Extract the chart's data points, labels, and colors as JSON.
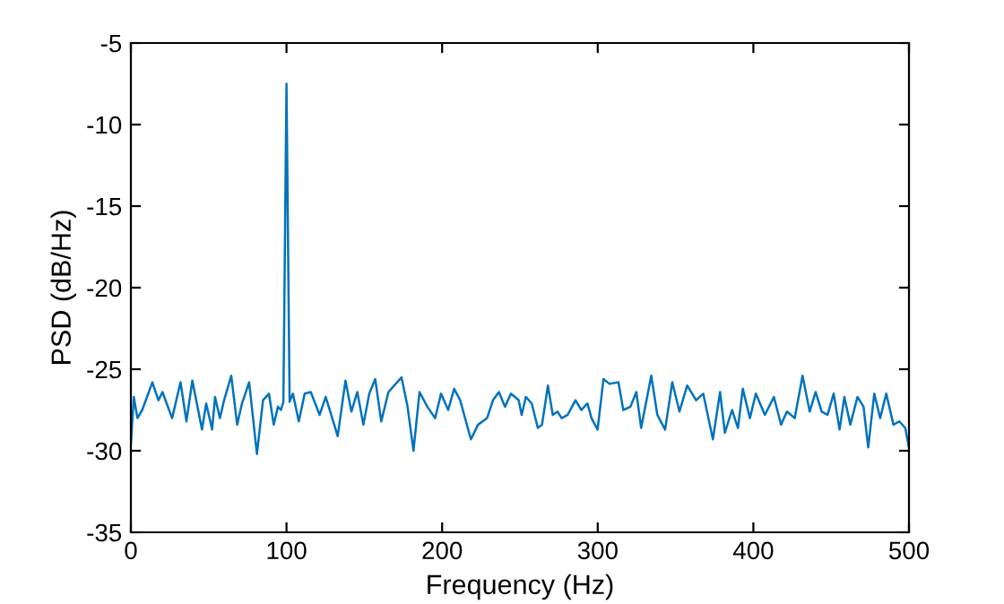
{
  "chart_data": {
    "type": "line",
    "xlabel": "Frequency (Hz)",
    "ylabel": "PSD (dB/Hz)",
    "xlim": [
      0,
      500
    ],
    "ylim": [
      -35,
      -5
    ],
    "xticks": [
      0,
      100,
      200,
      300,
      400,
      500
    ],
    "yticks": [
      -35,
      -30,
      -25,
      -20,
      -15,
      -10,
      -5
    ],
    "grid": false,
    "legend": false,
    "series": [
      {
        "color": "#0072bd",
        "x": [
          0,
          1.9,
          4.2,
          7.3,
          13.8,
          17.7,
          20.3,
          26.5,
          31.9,
          35.7,
          39.5,
          45.7,
          48.4,
          52.2,
          54.1,
          57.2,
          59.9,
          64.5,
          68.3,
          71.4,
          76,
          81,
          84.9,
          88.7,
          91.8,
          94.5,
          96.4,
          98,
          100,
          102,
          104.1,
          107.9,
          111.7,
          115.6,
          121.3,
          125.2,
          132.9,
          137.9,
          141.7,
          145.5,
          149.4,
          153.2,
          157.0,
          160.9,
          165.5,
          173.9,
          177.8,
          181.6,
          185.5,
          190.5,
          195.5,
          199.3,
          203.9,
          207.7,
          211.6,
          218.5,
          223.1,
          228.9,
          232.7,
          236.5,
          240.4,
          244.2,
          249.2,
          251.1,
          253.8,
          257.6,
          261.5,
          264.2,
          268,
          271.1,
          274.2,
          276.8,
          280.7,
          285.7,
          289.5,
          293.4,
          296.0,
          299.9,
          303.7,
          307.6,
          313.3,
          316.4,
          321.0,
          324.8,
          327.9,
          334.4,
          338.3,
          343.3,
          347.9,
          352.5,
          357.5,
          363.2,
          367.8,
          374.0,
          378.6,
          381.7,
          386.3,
          390.1,
          393.2,
          397.8,
          401.6,
          407.4,
          413.2,
          417.8,
          421.6,
          426.6,
          431.6,
          436.2,
          440.0,
          443.9,
          447.7,
          451.6,
          455.4,
          458.5,
          462.3,
          466.9,
          470.8,
          473.8,
          477.7,
          481.5,
          485.4,
          490.0,
          493.8,
          497.6,
          500
        ],
        "values": [
          -29.6,
          -26.7,
          -28.0,
          -27.5,
          -25.8,
          -26.9,
          -26.4,
          -28.0,
          -25.8,
          -28.2,
          -25.7,
          -28.7,
          -27.1,
          -28.7,
          -26.7,
          -28.0,
          -26.9,
          -25.4,
          -28.4,
          -27.1,
          -25.8,
          -30.2,
          -26.9,
          -26.5,
          -28.4,
          -27.3,
          -27.5,
          -27.0,
          -7.5,
          -27.0,
          -26.5,
          -28.2,
          -26.5,
          -26.4,
          -27.8,
          -26.7,
          -29.1,
          -25.7,
          -27.6,
          -26.4,
          -28.4,
          -26.5,
          -25.6,
          -28.2,
          -26.4,
          -25.5,
          -27.3,
          -30.0,
          -26.4,
          -27.3,
          -28.0,
          -26.5,
          -27.5,
          -26.2,
          -26.9,
          -29.3,
          -28.4,
          -28.0,
          -26.9,
          -26.4,
          -27.3,
          -26.5,
          -26.9,
          -27.8,
          -26.7,
          -27.1,
          -28.6,
          -28.4,
          -26.0,
          -27.8,
          -27.6,
          -28.0,
          -27.8,
          -26.9,
          -27.5,
          -27.1,
          -28.0,
          -28.7,
          -25.6,
          -25.9,
          -25.8,
          -27.5,
          -27.3,
          -26.4,
          -28.6,
          -25.4,
          -27.8,
          -28.7,
          -25.8,
          -27.6,
          -26.0,
          -26.9,
          -26.5,
          -29.3,
          -26.4,
          -28.9,
          -27.5,
          -28.6,
          -26.2,
          -28.0,
          -26.5,
          -27.8,
          -26.7,
          -28.4,
          -27.6,
          -28.0,
          -25.4,
          -27.6,
          -26.4,
          -27.6,
          -27.8,
          -26.5,
          -28.7,
          -26.7,
          -28.4,
          -26.7,
          -27.3,
          -29.8,
          -26.5,
          -28.0,
          -26.5,
          -28.4,
          -28.2,
          -28.6,
          -29.8
        ]
      }
    ]
  }
}
